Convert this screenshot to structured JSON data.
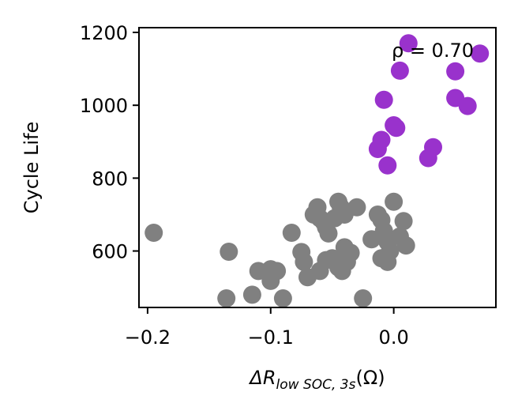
{
  "chart_data": {
    "type": "scatter",
    "xlabel": {
      "main": "ΔR",
      "sub": "low SOC, 3s",
      "unit": "(Ω)"
    },
    "ylabel": "Cycle Life",
    "xlim": [
      -0.207,
      0.083
    ],
    "ylim": [
      445,
      1213
    ],
    "x_ticks": [
      {
        "value": -0.2,
        "label": "−0.2"
      },
      {
        "value": -0.1,
        "label": "−0.1"
      },
      {
        "value": 0.0,
        "label": "0.0"
      }
    ],
    "y_ticks": [
      {
        "value": 600,
        "label": "600"
      },
      {
        "value": 800,
        "label": "800"
      },
      {
        "value": 1000,
        "label": "1000"
      },
      {
        "value": 1200,
        "label": "1200"
      }
    ],
    "annotation": "ρ = 0.70",
    "annotation_position": "top-right",
    "grid": false,
    "legend": "none",
    "series": [
      {
        "color": "#808080",
        "points": [
          [
            -0.195,
            650
          ],
          [
            -0.134,
            598
          ],
          [
            -0.136,
            470
          ],
          [
            -0.115,
            480
          ],
          [
            -0.11,
            545
          ],
          [
            -0.1,
            550
          ],
          [
            -0.1,
            518
          ],
          [
            -0.09,
            470
          ],
          [
            -0.095,
            545
          ],
          [
            -0.083,
            650
          ],
          [
            -0.075,
            597
          ],
          [
            -0.073,
            570
          ],
          [
            -0.07,
            528
          ],
          [
            -0.065,
            700
          ],
          [
            -0.062,
            720
          ],
          [
            -0.06,
            690
          ],
          [
            -0.057,
            680
          ],
          [
            -0.055,
            665
          ],
          [
            -0.053,
            648
          ],
          [
            -0.048,
            690
          ],
          [
            -0.045,
            735
          ],
          [
            -0.043,
            720
          ],
          [
            -0.04,
            700
          ],
          [
            -0.06,
            545
          ],
          [
            -0.055,
            575
          ],
          [
            -0.05,
            580
          ],
          [
            -0.045,
            555
          ],
          [
            -0.042,
            545
          ],
          [
            -0.04,
            610
          ],
          [
            -0.038,
            570
          ],
          [
            -0.035,
            595
          ],
          [
            -0.03,
            720
          ],
          [
            -0.025,
            470
          ],
          [
            -0.018,
            632
          ],
          [
            -0.013,
            700
          ],
          [
            -0.01,
            685
          ],
          [
            -0.008,
            655
          ],
          [
            -0.005,
            625
          ],
          [
            -0.003,
            600
          ],
          [
            0.0,
            735
          ],
          [
            0.005,
            640
          ],
          [
            0.008,
            682
          ],
          [
            0.01,
            615
          ],
          [
            -0.01,
            580
          ],
          [
            -0.005,
            570
          ]
        ]
      },
      {
        "color": "#9932cc",
        "points": [
          [
            0.012,
            1170
          ],
          [
            0.005,
            1095
          ],
          [
            0.07,
            1142
          ],
          [
            0.05,
            1093
          ],
          [
            0.05,
            1020
          ],
          [
            0.06,
            998
          ],
          [
            -0.008,
            1015
          ],
          [
            0.0,
            945
          ],
          [
            0.002,
            938
          ],
          [
            -0.01,
            905
          ],
          [
            -0.013,
            880
          ],
          [
            -0.005,
            835
          ],
          [
            0.032,
            885
          ],
          [
            0.028,
            855
          ]
        ]
      }
    ]
  }
}
